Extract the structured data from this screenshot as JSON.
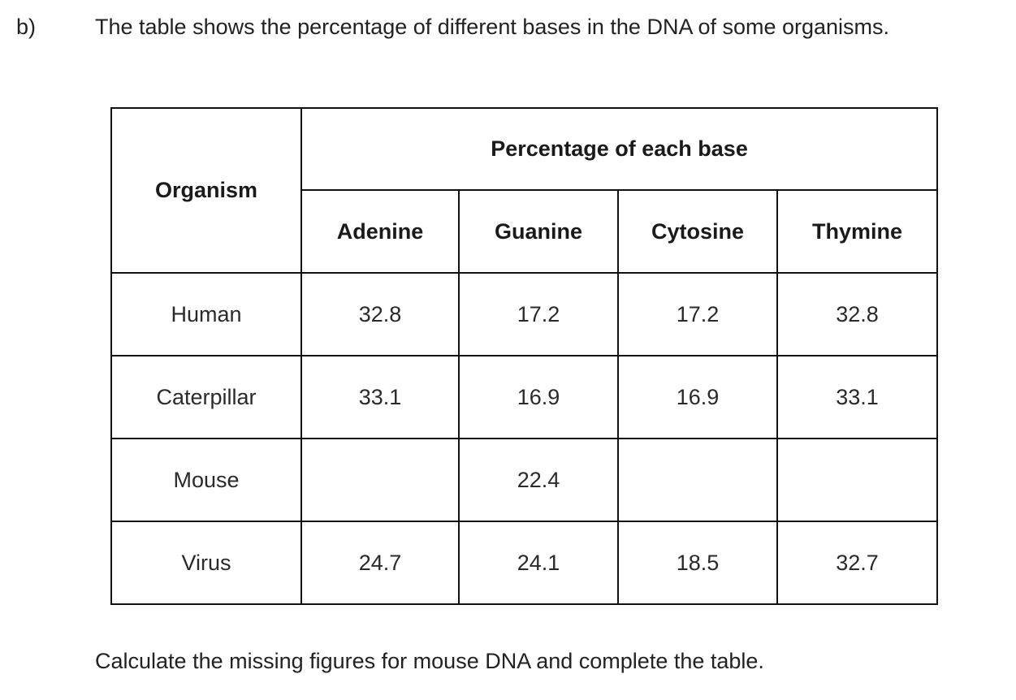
{
  "question": {
    "part_label": "b)",
    "intro": "The table shows the percentage of different bases in the DNA of some organisms.",
    "instruction": "Calculate the missing figures for mouse DNA and complete the table."
  },
  "table": {
    "organism_header": "Organism",
    "group_header": "Percentage of each base",
    "base_headers": [
      "Adenine",
      "Guanine",
      "Cytosine",
      "Thymine"
    ],
    "rows": [
      {
        "organism": "Human",
        "values": [
          "32.8",
          "17.2",
          "17.2",
          "32.8"
        ]
      },
      {
        "organism": "Caterpillar",
        "values": [
          "33.1",
          "16.9",
          "16.9",
          "33.1"
        ]
      },
      {
        "organism": "Mouse",
        "values": [
          "",
          "22.4",
          "",
          ""
        ]
      },
      {
        "organism": "Virus",
        "values": [
          "24.7",
          "24.1",
          "18.5",
          "32.7"
        ]
      }
    ]
  }
}
